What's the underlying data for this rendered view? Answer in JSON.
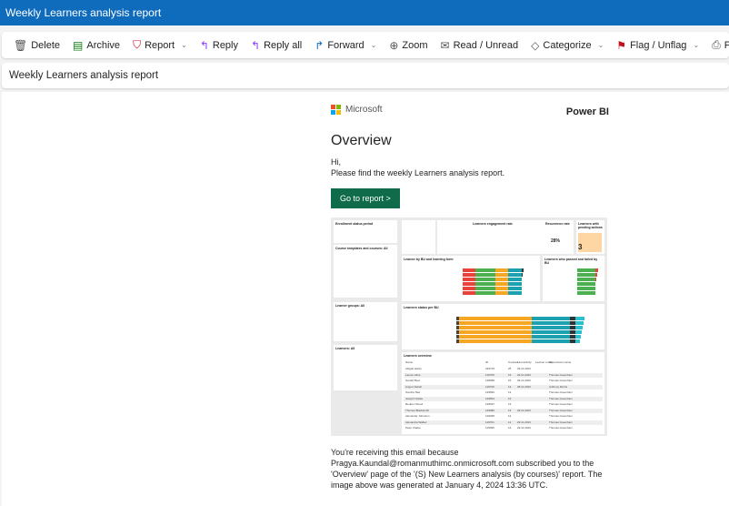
{
  "window": {
    "title": "Weekly Learners analysis report"
  },
  "toolbar": [
    {
      "label": "Delete",
      "icon": "trash-icon",
      "glyph": "🗑",
      "color": "#555"
    },
    {
      "label": "Archive",
      "icon": "archive-icon",
      "glyph": "▤",
      "color": "#107c10"
    },
    {
      "label": "Report",
      "icon": "shield-alert-icon",
      "glyph": "⛉",
      "color": "#c50f1f",
      "dropdown": true
    },
    {
      "sep": true
    },
    {
      "label": "Reply",
      "icon": "reply-icon",
      "glyph": "↰",
      "color": "#8a3ffc"
    },
    {
      "label": "Reply all",
      "icon": "reply-all-icon",
      "glyph": "↰",
      "color": "#8a3ffc"
    },
    {
      "label": "Forward",
      "icon": "forward-icon",
      "glyph": "↱",
      "color": "#0f6cbd",
      "dropdown": true
    },
    {
      "sep": true
    },
    {
      "label": "Zoom",
      "icon": "zoom-icon",
      "glyph": "⊕",
      "color": "#555"
    },
    {
      "sep": true
    },
    {
      "label": "Read / Unread",
      "icon": "envelope-open-icon",
      "glyph": "✉",
      "color": "#555"
    },
    {
      "label": "Categorize",
      "icon": "tag-icon",
      "glyph": "◇",
      "color": "#555",
      "dropdown": true
    },
    {
      "label": "Flag / Unflag",
      "icon": "flag-icon",
      "glyph": "⚑",
      "color": "#c50f1f",
      "dropdown": true
    },
    {
      "sep": true
    },
    {
      "label": "Print",
      "icon": "printer-icon",
      "glyph": "⎙",
      "color": "#555"
    }
  ],
  "subject": "Weekly Learners analysis report",
  "email": {
    "brand": "Microsoft",
    "product": "Power BI",
    "heading": "Overview",
    "greeting": "Hi,",
    "intro": "Please find the weekly Learners analysis report.",
    "button": "Go to report >",
    "footer": "You're receiving this email because Pragya.Kaundal@romanmuthimc.onmicrosoft.com subscribed you to the 'Overview' page of the '(S) New Learners analysis (by courses)' report. The image above was generated at January 4, 2024 13:36 UTC.",
    "accent": "#0f6b4a"
  },
  "report": {
    "filters": [
      "Enrollment status period",
      "Course templates and courses: All",
      "Learner groups: All",
      "Learners: All"
    ],
    "cards": [
      "Learners engagement rate",
      "Recurrence rate",
      "Learners with pending actions"
    ],
    "recurrence": "28%",
    "pending": "3",
    "charts": [
      "Learner by BU and learning form",
      "Learners who passed and failed by BU",
      "Learners status per BU",
      "Learners overview"
    ],
    "table_headers": [
      "Name",
      "ID",
      "Courses",
      "Last activity",
      "Learner email",
      "Supervisors name"
    ],
    "rows": [
      [
        "Abigail Hardy",
        "233715",
        "25",
        "29.11.2023",
        ""
      ],
      [
        "Lauren Alice",
        "116705",
        "19",
        "29.11.2023",
        "Thomas Greenham"
      ],
      [
        "Gerald Best",
        "128059",
        "15",
        "29.11.2023",
        "Thomas Greenham"
      ],
      [
        "Angus Nebell",
        "116700",
        "14",
        "28.11.2023",
        "Anthony Morris"
      ],
      [
        "Sondra Tate",
        "129592",
        "14",
        "",
        "Thomas Greenham"
      ],
      [
        "Joseph Clarke",
        "129504",
        "13",
        "",
        "Thomas Greenham"
      ],
      [
        "Reuben Wood",
        "128037",
        "13",
        "",
        "Thomas Greenham"
      ],
      [
        "Thomas Blacksmith",
        "129080",
        "13",
        "29.11.2023",
        "Thomas Greenham"
      ],
      [
        "Alexander Johnston",
        "129035",
        "12",
        "",
        "Thomas Greenham"
      ],
      [
        "Alexandra Walker",
        "116701",
        "12",
        "29.11.2023",
        "Thomas Greenham"
      ],
      [
        "Peter Clarke",
        "115099",
        "12",
        "29.11.2023",
        "Thomas Greenham"
      ]
    ]
  }
}
